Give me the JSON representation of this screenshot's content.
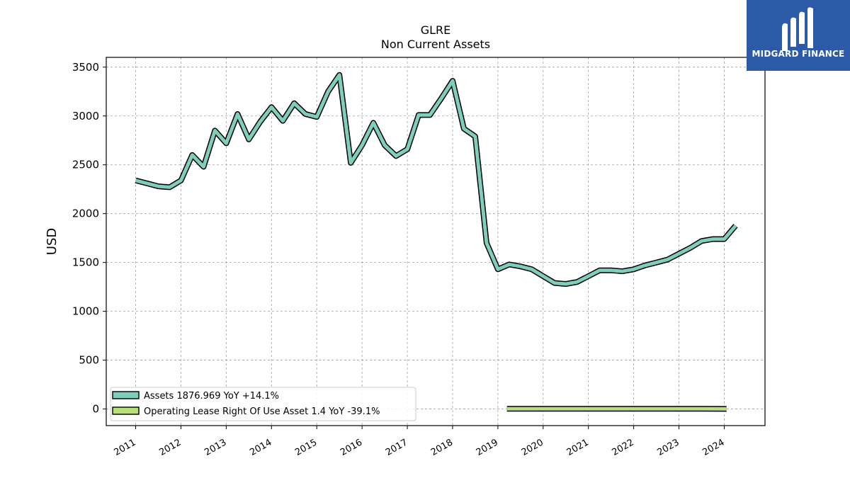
{
  "chart_data": {
    "type": "line",
    "title": "GLRE",
    "subtitle": "Non Current  Assets",
    "ylabel": "USD",
    "xlabel": "",
    "ylim": [
      -170,
      3600
    ],
    "xlim": [
      2010.35,
      2024.9
    ],
    "yticks": [
      0,
      500,
      1000,
      1500,
      2000,
      2500,
      3000,
      3500
    ],
    "xticks": [
      2011,
      2012,
      2013,
      2014,
      2015,
      2016,
      2017,
      2018,
      2019,
      2020,
      2021,
      2022,
      2023,
      2024
    ],
    "grid": true,
    "legend_position": "lower-left",
    "series": [
      {
        "name": "Assets  1876.969 YoY +14.1%",
        "color": "#7fcdbb",
        "x": [
          2011.0,
          2011.25,
          2011.5,
          2011.75,
          2012.0,
          2012.25,
          2012.5,
          2012.75,
          2013.0,
          2013.25,
          2013.5,
          2013.75,
          2014.0,
          2014.25,
          2014.5,
          2014.75,
          2015.0,
          2015.25,
          2015.5,
          2015.75,
          2016.0,
          2016.25,
          2016.5,
          2016.75,
          2017.0,
          2017.25,
          2017.5,
          2017.75,
          2018.0,
          2018.25,
          2018.5,
          2018.75,
          2019.0,
          2019.25,
          2019.5,
          2019.75,
          2020.0,
          2020.25,
          2020.5,
          2020.75,
          2021.0,
          2021.25,
          2021.5,
          2021.75,
          2022.0,
          2022.25,
          2022.5,
          2022.75,
          2023.0,
          2023.25,
          2023.5,
          2023.75,
          2024.0,
          2024.25
        ],
        "values": [
          2340,
          2310,
          2280,
          2270,
          2340,
          2600,
          2480,
          2850,
          2720,
          3020,
          2760,
          2940,
          3090,
          2950,
          3130,
          3020,
          2990,
          3250,
          3420,
          2520,
          2700,
          2930,
          2700,
          2590,
          2660,
          3010,
          3010,
          3180,
          3360,
          2870,
          2790,
          1700,
          1430,
          1480,
          1460,
          1430,
          1360,
          1290,
          1280,
          1300,
          1360,
          1420,
          1420,
          1410,
          1430,
          1470,
          1500,
          1530,
          1590,
          1650,
          1720,
          1740,
          1740,
          1877
        ]
      },
      {
        "name": "Operating Lease Right Of Use Asset  1.4 YoY -39.1%",
        "color": "#b8e07a",
        "x": [
          2019.2,
          2019.5,
          2020.0,
          2020.5,
          2021.0,
          2021.5,
          2022.0,
          2022.5,
          2023.0,
          2023.5,
          2024.05
        ],
        "values": [
          2.3,
          2.2,
          2.0,
          1.9,
          1.8,
          1.9,
          2.2,
          2.3,
          2.1,
          2.0,
          1.4
        ]
      }
    ]
  },
  "logo": {
    "text": "MIDGARD FINANCE"
  }
}
